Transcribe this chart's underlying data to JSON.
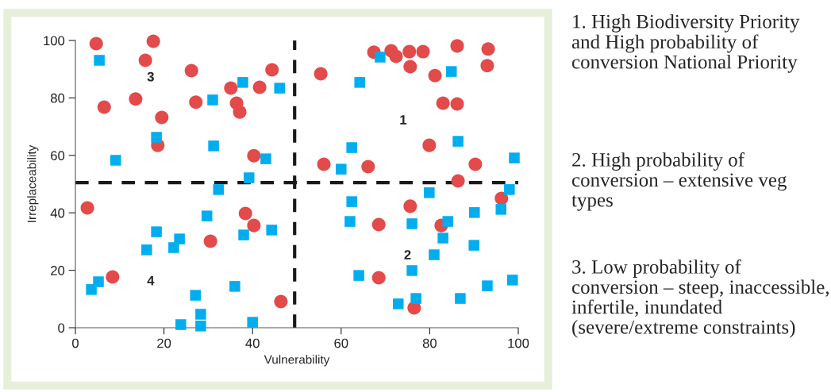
{
  "chart_data": {
    "type": "scatter",
    "xlabel": "Vulnerability",
    "ylabel": "Irreplaceability",
    "xlim": [
      0,
      100
    ],
    "ylim": [
      0,
      100
    ],
    "xticks": [
      0,
      20,
      40,
      60,
      80,
      100
    ],
    "yticks": [
      0,
      20,
      40,
      60,
      80,
      100
    ],
    "grid": false,
    "legend": false,
    "series": [
      {
        "color": "#e34a4a",
        "marker": "circle",
        "x": [
          4.7,
          17.6,
          15.8,
          6.5,
          13.6,
          19.5,
          26.2,
          27.2,
          35.1,
          36.4,
          37.1,
          44.4,
          41.6,
          40.3,
          18.6,
          55.4,
          67.4,
          71.3,
          72.4,
          75.4,
          78.5,
          75.6,
          81.2,
          86.2,
          93.2,
          93.0,
          83.0,
          86.2,
          79.9,
          56.1,
          66.1,
          90.3,
          86.4,
          2.7,
          8.4,
          30.5,
          38.4,
          40.3,
          46.4,
          68.5,
          75.6,
          82.6,
          96.2,
          68.5,
          76.5
        ],
        "values": [
          98.9,
          99.7,
          93.1,
          76.8,
          79.6,
          73.2,
          89.5,
          78.5,
          83.4,
          78.2,
          75.1,
          89.8,
          83.7,
          59.9,
          63.5,
          88.4,
          95.9,
          96.4,
          94.5,
          96.1,
          96.1,
          90.9,
          87.8,
          98.1,
          97.0,
          91.2,
          78.2,
          77.9,
          63.5,
          56.9,
          56.1,
          56.9,
          51.1,
          41.7,
          17.7,
          30.1,
          39.8,
          35.6,
          9.1,
          35.9,
          42.3,
          35.6,
          45.0,
          17.4,
          6.9
        ]
      },
      {
        "color": "#00aeef",
        "marker": "square",
        "x": [
          5.4,
          37.8,
          46.1,
          31.0,
          18.3,
          31.2,
          9.1,
          43.0,
          39.2,
          68.8,
          64.2,
          84.9,
          62.4,
          60.0,
          86.4,
          99.1,
          32.3,
          29.7,
          18.3,
          23.5,
          16.1,
          22.2,
          44.3,
          38.0,
          3.6,
          5.2,
          27.1,
          28.3,
          28.3,
          23.8,
          40.0,
          36.0,
          62.4,
          62.0,
          76.0,
          79.9,
          84.1,
          83.0,
          90.1,
          90.0,
          81.0,
          96.1,
          98.0,
          64.0,
          76.0,
          76.9,
          72.9,
          86.9,
          93.0,
          98.7
        ],
        "values": [
          93.1,
          85.4,
          83.4,
          79.3,
          66.3,
          63.3,
          58.3,
          58.8,
          52.2,
          94.2,
          85.4,
          89.2,
          62.7,
          55.2,
          64.9,
          59.1,
          48.1,
          38.9,
          33.4,
          30.9,
          27.1,
          27.9,
          34.0,
          32.3,
          13.3,
          16.0,
          11.3,
          4.7,
          0.6,
          1.1,
          1.9,
          14.4,
          43.9,
          37.0,
          36.2,
          47.0,
          37.0,
          31.2,
          40.1,
          28.7,
          25.4,
          41.2,
          48.1,
          18.2,
          19.9,
          10.2,
          8.3,
          10.2,
          14.6,
          16.6
        ]
      }
    ],
    "ref_lines": [
      {
        "axis": "x",
        "value": 49.5,
        "color": "#1a1a1a",
        "line_style": "dashed"
      },
      {
        "axis": "y",
        "value": 50.5,
        "color": "#1a1a1a",
        "line_style": "dashed"
      }
    ],
    "annotations": [
      "1",
      "2",
      "3",
      "4",
      "1. High Biodiversity Priority and High probability of conversion National Priority",
      "2. High probability of conversion – extensive veg types",
      "3. Low probability of conversion – steep, inaccessible, infertile, inundated (severe/extreme constraints)"
    ]
  }
}
